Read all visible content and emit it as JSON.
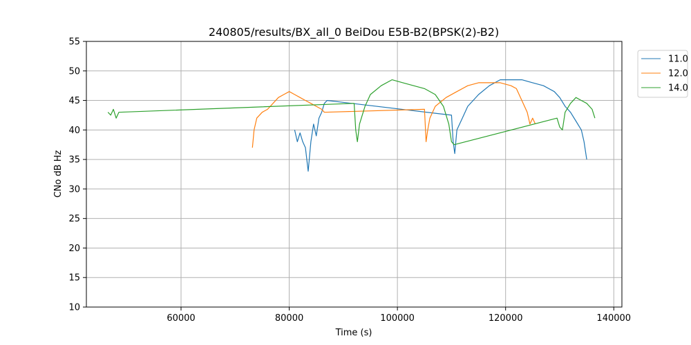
{
  "chart_data": {
    "type": "line",
    "title": "240805/results/BX_all_0 BeiDou E5B-B2(BPSK(2)-B2)",
    "xlabel": "Time (s)",
    "ylabel": "CNo dB Hz",
    "xlim": [
      42500,
      141500
    ],
    "ylim": [
      10,
      55
    ],
    "xticks": [
      60000,
      80000,
      100000,
      120000,
      140000
    ],
    "yticks": [
      10,
      15,
      20,
      25,
      30,
      35,
      40,
      45,
      50,
      55
    ],
    "grid": true,
    "legend_position": "right-top-outside",
    "series": [
      {
        "name": "11.0",
        "color": "#1f77b4",
        "points": [
          [
            81000,
            40
          ],
          [
            81500,
            38
          ],
          [
            82000,
            39.5
          ],
          [
            82500,
            38
          ],
          [
            83000,
            37
          ],
          [
            83500,
            33
          ],
          [
            84000,
            38
          ],
          [
            84500,
            41
          ],
          [
            85000,
            39
          ],
          [
            85500,
            42
          ],
          [
            86000,
            43
          ],
          [
            86500,
            44.5
          ],
          [
            87000,
            45
          ],
          [
            110000,
            42.5
          ],
          [
            110300,
            38
          ],
          [
            110600,
            36
          ],
          [
            111000,
            40
          ],
          [
            112000,
            42
          ],
          [
            113000,
            44
          ],
          [
            115000,
            46
          ],
          [
            117000,
            47.5
          ],
          [
            119000,
            48.5
          ],
          [
            121000,
            48.5
          ],
          [
            123000,
            48.5
          ],
          [
            125000,
            48
          ],
          [
            127000,
            47.5
          ],
          [
            129000,
            46.5
          ],
          [
            130000,
            45.5
          ],
          [
            131000,
            44
          ],
          [
            132000,
            43
          ],
          [
            133000,
            41.5
          ],
          [
            134000,
            40
          ],
          [
            134500,
            38
          ],
          [
            135000,
            35
          ]
        ]
      },
      {
        "name": "12.0",
        "color": "#ff7f0e",
        "points": [
          [
            73200,
            37
          ],
          [
            73500,
            40
          ],
          [
            74000,
            42
          ],
          [
            75000,
            43
          ],
          [
            76000,
            43.5
          ],
          [
            77000,
            44.5
          ],
          [
            78000,
            45.5
          ],
          [
            79000,
            46
          ],
          [
            80000,
            46.5
          ],
          [
            81000,
            46
          ],
          [
            82000,
            45.5
          ],
          [
            83000,
            45
          ],
          [
            84000,
            44.5
          ],
          [
            85000,
            44
          ],
          [
            86000,
            43.5
          ],
          [
            86500,
            43
          ],
          [
            105000,
            43.5
          ],
          [
            105300,
            38
          ],
          [
            105600,
            40
          ],
          [
            106000,
            42
          ],
          [
            107000,
            44
          ],
          [
            109000,
            45.5
          ],
          [
            111000,
            46.5
          ],
          [
            113000,
            47.5
          ],
          [
            115000,
            48
          ],
          [
            117000,
            48
          ],
          [
            119000,
            48
          ],
          [
            121000,
            47.5
          ],
          [
            122000,
            47
          ],
          [
            123000,
            45
          ],
          [
            124000,
            43
          ],
          [
            124500,
            41
          ],
          [
            125000,
            42
          ],
          [
            125500,
            41
          ]
        ]
      },
      {
        "name": "14.0",
        "color": "#2ca02c",
        "points": [
          [
            46500,
            43
          ],
          [
            47000,
            42.5
          ],
          [
            47500,
            43.5
          ],
          [
            48000,
            42
          ],
          [
            48500,
            43
          ],
          [
            92000,
            44.5
          ],
          [
            92300,
            40
          ],
          [
            92600,
            38
          ],
          [
            93000,
            41
          ],
          [
            94000,
            44
          ],
          [
            95000,
            46
          ],
          [
            97000,
            47.5
          ],
          [
            99000,
            48.5
          ],
          [
            101000,
            48
          ],
          [
            103000,
            47.5
          ],
          [
            105000,
            47
          ],
          [
            107000,
            46
          ],
          [
            108500,
            44
          ],
          [
            109500,
            41
          ],
          [
            110000,
            38
          ],
          [
            110500,
            37.5
          ],
          [
            129500,
            42
          ],
          [
            130000,
            40.5
          ],
          [
            130500,
            40
          ],
          [
            131000,
            43
          ],
          [
            132000,
            44.5
          ],
          [
            133000,
            45.5
          ],
          [
            134000,
            45
          ],
          [
            135000,
            44.5
          ],
          [
            136000,
            43.5
          ],
          [
            136500,
            42
          ]
        ]
      }
    ]
  }
}
